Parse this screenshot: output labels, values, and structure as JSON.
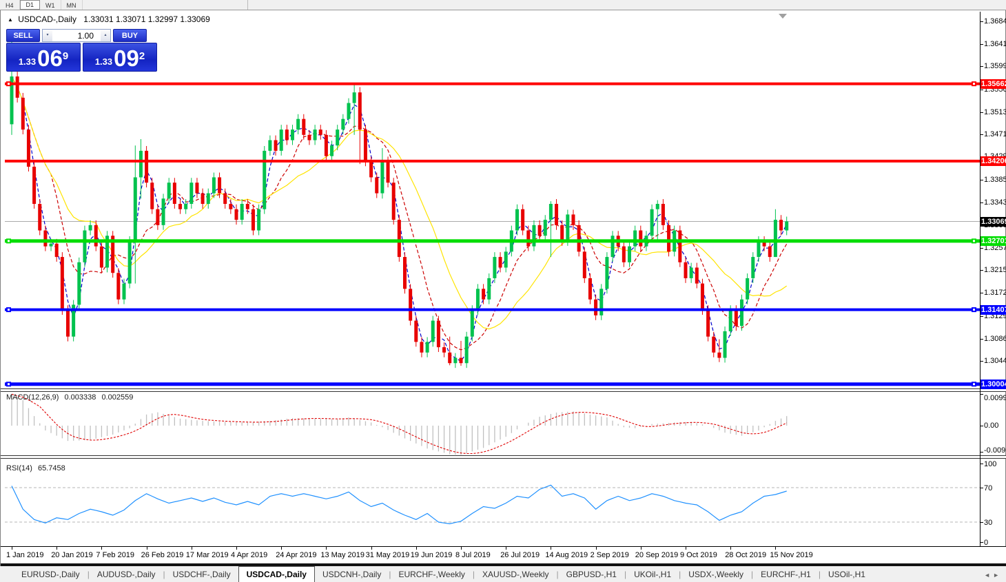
{
  "toolbar": {
    "timeframes": [
      "H4",
      "D1",
      "W1",
      "MN"
    ],
    "active": "D1"
  },
  "chart": {
    "title": "USDCAD-,Daily",
    "ohlc_text": "1.33031 1.33071 1.32997 1.33069"
  },
  "icons": {
    "triangle_up": "▲",
    "spinner_up": "▴",
    "spinner_down": "▾",
    "nav_left": "◄",
    "nav_right": "►"
  },
  "trade_panel": {
    "sell_label": "SELL",
    "buy_label": "BUY",
    "volume": "1.00",
    "sell_small": "1.33",
    "sell_big": "06",
    "sell_sup": "9",
    "buy_small": "1.33",
    "buy_big": "09",
    "buy_sup": "2"
  },
  "chart_data": {
    "type": "candlestick",
    "symbol": "USDCAD-",
    "timeframe": "Daily",
    "ohlc": {
      "open": "1.33031",
      "high": "1.33071",
      "low": "1.32997",
      "close": "1.33069"
    },
    "price_top": 1.3702,
    "price_bottom": 1.2991,
    "y_ticks": [
      "1.36840",
      "1.36410",
      "1.35990",
      "1.35560",
      "1.35130",
      "1.34710",
      "1.34290",
      "1.33850",
      "1.33430",
      "1.33000",
      "1.32570",
      "1.32150",
      "1.31720",
      "1.31290",
      "1.30860",
      "1.30440",
      "1.30010"
    ],
    "x_ticks": [
      {
        "label": "1 Jan 2019",
        "i": 0
      },
      {
        "label": "20 Jan 2019",
        "i": 8
      },
      {
        "label": "7 Feb 2019",
        "i": 16
      },
      {
        "label": "26 Feb 2019",
        "i": 24
      },
      {
        "label": "17 Mar 2019",
        "i": 32
      },
      {
        "label": "4 Apr 2019",
        "i": 40
      },
      {
        "label": "24 Apr 2019",
        "i": 48
      },
      {
        "label": "13 May 2019",
        "i": 56
      },
      {
        "label": "31 May 2019",
        "i": 64
      },
      {
        "label": "19 Jun 2019",
        "i": 72
      },
      {
        "label": "8 Jul 2019",
        "i": 80
      },
      {
        "label": "26 Jul 2019",
        "i": 88
      },
      {
        "label": "14 Aug 2019",
        "i": 96
      },
      {
        "label": "2 Sep 2019",
        "i": 104
      },
      {
        "label": "20 Sep 2019",
        "i": 112
      },
      {
        "label": "9 Oct 2019",
        "i": 120
      },
      {
        "label": "28 Oct 2019",
        "i": 128
      },
      {
        "label": "15 Nov 2019",
        "i": 136
      }
    ],
    "first_open": 1.349,
    "wick": 0.0009,
    "closes": [
      1.358,
      1.354,
      1.348,
      1.341,
      1.334,
      1.329,
      1.326,
      1.3265,
      1.324,
      1.314,
      1.309,
      1.315,
      1.323,
      1.329,
      1.33,
      1.326,
      1.322,
      1.328,
      1.321,
      1.316,
      1.319,
      1.327,
      1.339,
      1.344,
      1.338,
      1.333,
      1.33,
      1.335,
      1.338,
      1.334,
      1.333,
      1.334,
      1.338,
      1.336,
      1.334,
      1.336,
      1.339,
      1.336,
      1.334,
      1.333,
      1.331,
      1.334,
      1.333,
      1.329,
      1.333,
      1.344,
      1.346,
      1.344,
      1.348,
      1.346,
      1.348,
      1.35,
      1.347,
      1.346,
      1.348,
      1.347,
      1.343,
      1.345,
      1.348,
      1.35,
      1.353,
      1.355,
      1.348,
      1.342,
      1.339,
      1.336,
      1.342,
      1.338,
      1.331,
      1.324,
      1.318,
      1.312,
      1.308,
      1.306,
      1.308,
      1.312,
      1.307,
      1.306,
      1.304,
      1.305,
      1.304,
      1.309,
      1.314,
      1.318,
      1.316,
      1.32,
      1.324,
      1.322,
      1.325,
      1.329,
      1.333,
      1.329,
      1.326,
      1.33,
      1.328,
      1.331,
      1.334,
      1.33,
      1.327,
      1.332,
      1.33,
      1.325,
      1.32,
      1.316,
      1.313,
      1.318,
      1.324,
      1.328,
      1.326,
      1.323,
      1.326,
      1.329,
      1.326,
      1.328,
      1.333,
      1.334,
      1.33,
      1.325,
      1.329,
      1.323,
      1.32,
      1.322,
      1.319,
      1.314,
      1.309,
      1.306,
      1.305,
      1.31,
      1.314,
      1.311,
      1.316,
      1.32,
      1.324,
      1.327,
      1.326,
      1.324,
      1.331,
      1.329,
      1.3307
    ],
    "spikes": {
      "0": [
        1.3665,
        1.347
      ],
      "22": [
        1.345,
        1.319
      ],
      "23": [
        1.3462,
        1.335
      ],
      "61": [
        1.3566,
        1.347
      ],
      "62": [
        1.356,
        1.3415
      ],
      "66": [
        1.3445,
        1.335
      ],
      "78": [
        1.309,
        1.3036
      ],
      "80": [
        1.3082,
        1.3035
      ],
      "96": [
        1.3345,
        1.324
      ],
      "115": [
        1.3347,
        1.327
      ],
      "126": [
        1.3085,
        1.3042
      ],
      "136": [
        1.333,
        1.324
      ]
    },
    "candle_up_color": "#00c24e",
    "candle_down_color": "#e80000",
    "ma_lines": [
      {
        "period": 3,
        "color": "#0000cc",
        "dash": true
      },
      {
        "period": 8,
        "color": "#cc0000",
        "dash": true
      },
      {
        "period": 16,
        "color": "#ffe400",
        "dash": false
      }
    ],
    "current_price": {
      "value": 1.33069,
      "label": "1.33069",
      "line_color": "#aaaaaa",
      "badge_color": "#000000"
    },
    "hlines": [
      {
        "price": 1.35662,
        "label": "1.35662",
        "color": "#ff0000",
        "thickness": 4,
        "handles": true
      },
      {
        "price": 1.34206,
        "label": "1.34206",
        "color": "#ff0000",
        "thickness": 4,
        "handles": false
      },
      {
        "price": 1.32701,
        "label": "1.32701",
        "color": "#00dd00",
        "thickness": 5,
        "handles": true
      },
      {
        "price": 1.31407,
        "label": "1.31407",
        "color": "#0000ff",
        "thickness": 4,
        "handles": true
      },
      {
        "price": 1.30004,
        "label": "1.30004",
        "color": "#0000ff",
        "thickness": 5,
        "handles": true
      }
    ],
    "macd": {
      "label": "MACD(12,26,9)",
      "value_main": "0.003338",
      "value_signal": "0.002559",
      "axis_max": 0.009957,
      "axis_min": -0.009186,
      "axis_ticks": [
        "0.009957",
        "0.00",
        "-0.009186"
      ],
      "hist_color": "#c0c0c0",
      "signal_color": "#e00000",
      "hist_anchors": [
        [
          0,
          0.0099
        ],
        [
          2,
          0.008
        ],
        [
          4,
          0.003
        ],
        [
          6,
          -0.0015
        ],
        [
          10,
          -0.0048
        ],
        [
          14,
          -0.0045
        ],
        [
          18,
          -0.0028
        ],
        [
          21,
          -0.0008
        ],
        [
          24,
          0.0035
        ],
        [
          26,
          0.0042
        ],
        [
          30,
          0.0022
        ],
        [
          34,
          0.0015
        ],
        [
          38,
          0.0012
        ],
        [
          42,
          0.001
        ],
        [
          46,
          0.0015
        ],
        [
          50,
          0.0024
        ],
        [
          54,
          0.0022
        ],
        [
          58,
          0.002
        ],
        [
          60,
          0.0026
        ],
        [
          64,
          0.001
        ],
        [
          66,
          -0.0005
        ],
        [
          70,
          -0.004
        ],
        [
          74,
          -0.0072
        ],
        [
          78,
          -0.009
        ],
        [
          80,
          -0.0092
        ],
        [
          84,
          -0.007
        ],
        [
          88,
          -0.0035
        ],
        [
          91,
          0.0
        ],
        [
          94,
          0.0028
        ],
        [
          97,
          0.0041
        ],
        [
          100,
          0.0045
        ],
        [
          103,
          0.0035
        ],
        [
          106,
          0.0026
        ],
        [
          109,
          -0.0005
        ],
        [
          111,
          -0.0008
        ],
        [
          114,
          0.0005
        ],
        [
          118,
          0.001
        ],
        [
          121,
          0.0012
        ],
        [
          124,
          0.0
        ],
        [
          127,
          -0.0022
        ],
        [
          130,
          -0.0032
        ],
        [
          133,
          -0.0015
        ],
        [
          136,
          0.0015
        ],
        [
          138,
          0.003
        ]
      ]
    },
    "rsi": {
      "label": "RSI(14)",
      "value": "65.7458",
      "color": "#1e90ff",
      "levels": [
        70,
        30
      ],
      "axis_ticks": [
        "100",
        "70",
        "30",
        "0"
      ],
      "anchors": [
        [
          0,
          72
        ],
        [
          2,
          45
        ],
        [
          4,
          33
        ],
        [
          6,
          29
        ],
        [
          8,
          35
        ],
        [
          10,
          33
        ],
        [
          12,
          40
        ],
        [
          14,
          45
        ],
        [
          16,
          42
        ],
        [
          18,
          38
        ],
        [
          20,
          44
        ],
        [
          22,
          55
        ],
        [
          24,
          63
        ],
        [
          26,
          57
        ],
        [
          28,
          52
        ],
        [
          30,
          55
        ],
        [
          32,
          58
        ],
        [
          34,
          54
        ],
        [
          36,
          58
        ],
        [
          38,
          53
        ],
        [
          40,
          50
        ],
        [
          42,
          54
        ],
        [
          44,
          50
        ],
        [
          46,
          60
        ],
        [
          48,
          63
        ],
        [
          50,
          60
        ],
        [
          52,
          63
        ],
        [
          54,
          60
        ],
        [
          56,
          57
        ],
        [
          58,
          60
        ],
        [
          60,
          65
        ],
        [
          62,
          55
        ],
        [
          64,
          48
        ],
        [
          66,
          52
        ],
        [
          68,
          44
        ],
        [
          70,
          38
        ],
        [
          72,
          33
        ],
        [
          74,
          40
        ],
        [
          76,
          30
        ],
        [
          78,
          28
        ],
        [
          80,
          31
        ],
        [
          82,
          40
        ],
        [
          84,
          48
        ],
        [
          86,
          46
        ],
        [
          88,
          52
        ],
        [
          90,
          60
        ],
        [
          92,
          58
        ],
        [
          94,
          68
        ],
        [
          96,
          73
        ],
        [
          98,
          60
        ],
        [
          100,
          63
        ],
        [
          102,
          58
        ],
        [
          104,
          45
        ],
        [
          106,
          55
        ],
        [
          108,
          60
        ],
        [
          110,
          55
        ],
        [
          112,
          58
        ],
        [
          114,
          63
        ],
        [
          116,
          60
        ],
        [
          118,
          55
        ],
        [
          120,
          52
        ],
        [
          122,
          50
        ],
        [
          124,
          42
        ],
        [
          126,
          32
        ],
        [
          128,
          38
        ],
        [
          130,
          42
        ],
        [
          132,
          52
        ],
        [
          134,
          60
        ],
        [
          136,
          62
        ],
        [
          138,
          66
        ]
      ]
    }
  },
  "tabs": {
    "items": [
      {
        "label": "EURUSD-,Daily",
        "active": false
      },
      {
        "label": "AUDUSD-,Daily",
        "active": false
      },
      {
        "label": "USDCHF-,Daily",
        "active": false
      },
      {
        "label": "USDCAD-,Daily",
        "active": true
      },
      {
        "label": "USDCNH-,Daily",
        "active": false
      },
      {
        "label": "EURCHF-,Weekly",
        "active": false
      },
      {
        "label": "XAUUSD-,Weekly",
        "active": false
      },
      {
        "label": "GBPUSD-,H1",
        "active": false
      },
      {
        "label": "UKOil-,H1",
        "active": false
      },
      {
        "label": "USDX-,Weekly",
        "active": false
      },
      {
        "label": "EURCHF-,H1",
        "active": false
      },
      {
        "label": "USOil-,H1",
        "active": false
      }
    ]
  }
}
